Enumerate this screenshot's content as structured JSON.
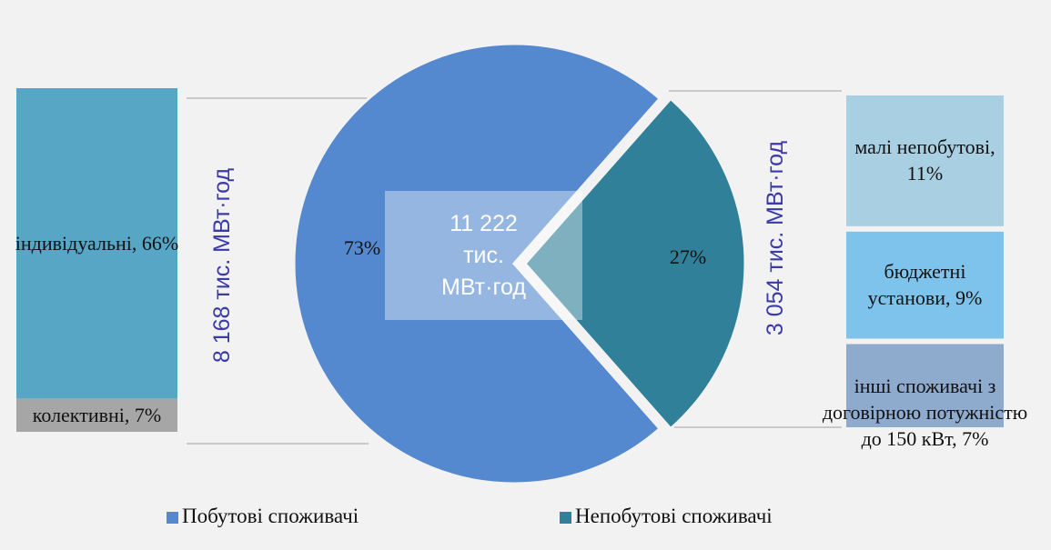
{
  "chart_data": {
    "type": "pie",
    "center_label": "11 222 тис. МВт·год",
    "categories": [
      "Побутові споживачі",
      "Непобутові споживачі"
    ],
    "values": [
      73,
      27
    ],
    "value_labels": [
      "73%",
      "27%"
    ],
    "colors": [
      "#5589cf",
      "#31809a"
    ],
    "totals": [
      "8 168 тис. МВт·год",
      "3 054 тис. МВт·год"
    ],
    "breakdowns": [
      {
        "values": [
          66,
          7
        ],
        "value_labels": [
          "індивідуальні, 66%",
          "колективні, 7%"
        ],
        "colors": [
          "#57a6c5",
          "#a6a6a6"
        ]
      },
      {
        "values": [
          11,
          9,
          7
        ],
        "value_labels": [
          "малі непобутові, 11%",
          "бюджетні установи, 9%",
          "інші споживачі з договірною потужністю до 150 кВт, 7%"
        ],
        "colors": [
          "#a9cfe2",
          "#7dc3eb",
          "#8eaacd"
        ]
      }
    ]
  }
}
